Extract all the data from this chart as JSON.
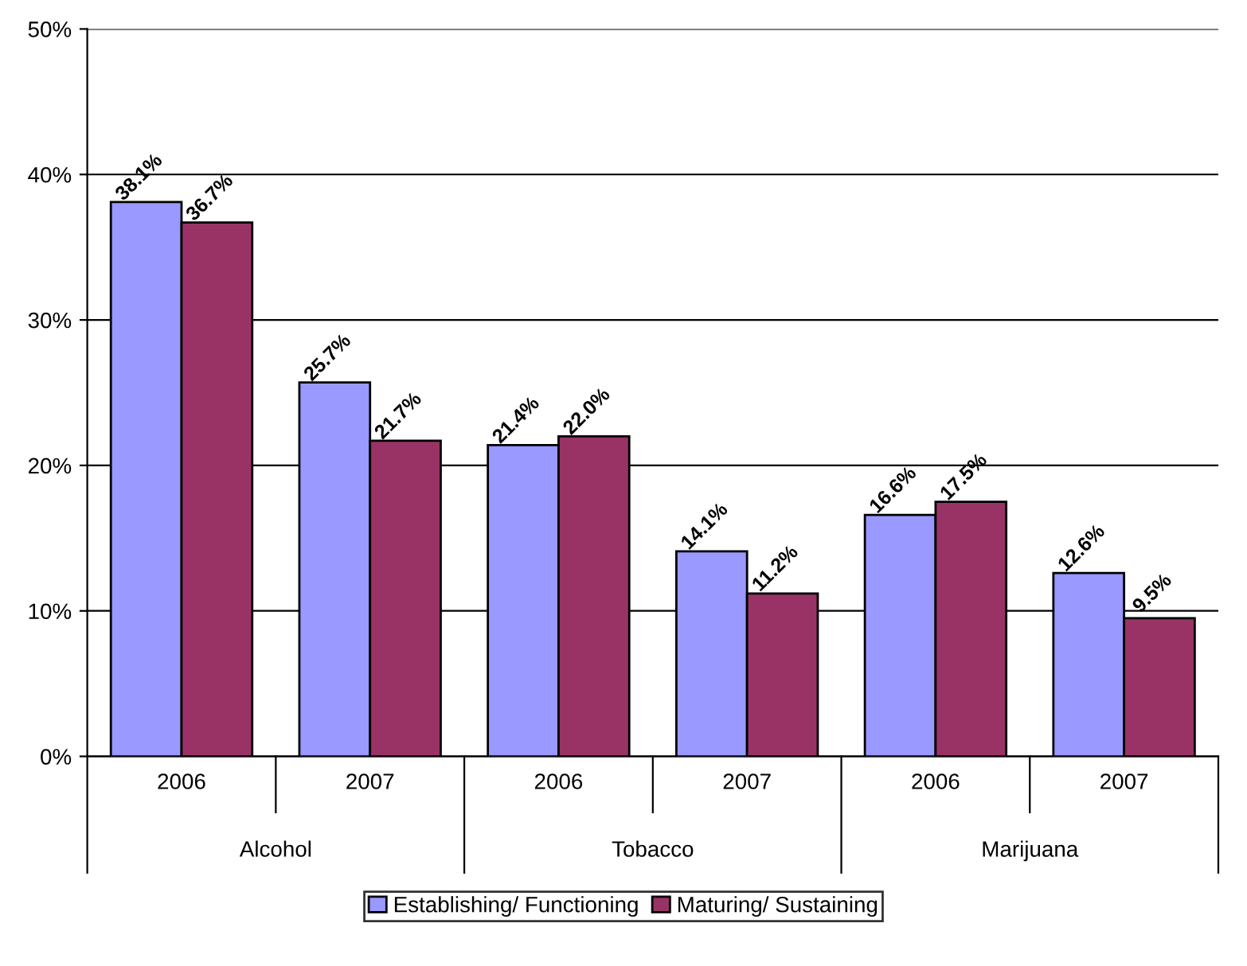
{
  "chart_data": {
    "type": "bar",
    "categories": [
      "2006",
      "2007",
      "2006",
      "2007",
      "2006",
      "2007"
    ],
    "series": [
      {
        "name": "Establishing/ Functioning",
        "color": "#9999ff",
        "values": [
          38.1,
          25.7,
          21.4,
          14.1,
          16.6,
          12.6
        ],
        "value_labels": [
          "38.1%",
          "25.7%",
          "21.4%",
          "14.1%",
          "16.6%",
          "12.6%"
        ]
      },
      {
        "name": "Maturing/ Sustaining",
        "color": "#993366",
        "values": [
          36.7,
          21.7,
          22.0,
          11.2,
          17.5,
          9.5
        ],
        "value_labels": [
          "36.7%",
          "21.7%",
          "22.0%",
          "11.2%",
          "17.5%",
          "9.5%"
        ]
      }
    ],
    "annotations": [
      "Alcohol",
      "Tobacco",
      "Marijuana"
    ],
    "ylim": [
      0,
      50
    ],
    "yticks": [
      {
        "value": 0,
        "label": "0%"
      },
      {
        "value": 10,
        "label": "10%"
      },
      {
        "value": 20,
        "label": "20%"
      },
      {
        "value": 30,
        "label": "30%"
      },
      {
        "value": 40,
        "label": "40%"
      },
      {
        "value": 50,
        "label": "50%"
      }
    ],
    "grid": "y",
    "legend": "bottom"
  }
}
